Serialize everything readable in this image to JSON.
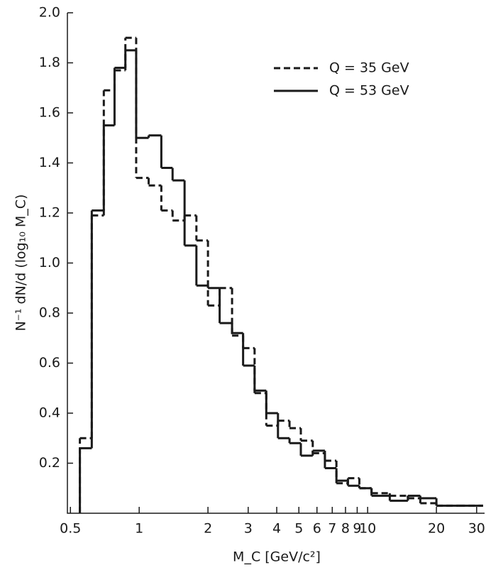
{
  "chart_data": {
    "type": "histogram",
    "xlabel": "M_C  [GeV/c²]",
    "ylabel": "N⁻¹ dN/d (log₁₀ M_C)",
    "xscale": "log",
    "xlim": [
      0.485,
      32.5
    ],
    "ylim": [
      0,
      2.0
    ],
    "xticks": [
      0.5,
      1,
      2,
      3,
      4,
      5,
      6,
      7,
      8,
      9,
      10,
      20,
      30
    ],
    "yticks": [
      0.2,
      0.4,
      0.6,
      0.8,
      {
        "value": 1.0,
        "label": "1.0"
      },
      1.2,
      1.4,
      1.6,
      1.8,
      {
        "value": 2.0,
        "label": "2.0"
      }
    ],
    "legend": "upper right",
    "bins": [
      0.55,
      0.62,
      0.7,
      0.78,
      0.87,
      0.97,
      1.1,
      1.25,
      1.4,
      1.58,
      1.78,
      2.0,
      2.25,
      2.55,
      2.85,
      3.2,
      3.6,
      4.05,
      4.55,
      5.1,
      5.75,
      6.5,
      7.3,
      8.2,
      9.2,
      10.4,
      12.5,
      15,
      17,
      20,
      25,
      32
    ],
    "series": [
      {
        "name": "Q = 35 GeV",
        "color": "#1a1a1a",
        "dash": true,
        "values": [
          0.3,
          1.19,
          1.69,
          1.77,
          1.9,
          1.34,
          1.31,
          1.21,
          1.17,
          1.19,
          1.09,
          0.83,
          0.9,
          0.71,
          0.66,
          0.48,
          0.35,
          0.37,
          0.34,
          0.29,
          0.24,
          0.21,
          0.12,
          0.14,
          0.1,
          0.08,
          0.07,
          0.06,
          0.04,
          0.03,
          0.03
        ]
      },
      {
        "name": "Q = 53 GeV",
        "color": "#1a1a1a",
        "dash": false,
        "values": [
          0.26,
          1.21,
          1.55,
          1.78,
          1.85,
          1.5,
          1.51,
          1.38,
          1.33,
          1.07,
          0.91,
          0.9,
          0.76,
          0.72,
          0.59,
          0.49,
          0.4,
          0.3,
          0.28,
          0.23,
          0.25,
          0.18,
          0.13,
          0.11,
          0.1,
          0.07,
          0.05,
          0.07,
          0.06,
          0.03,
          0.03
        ]
      }
    ]
  }
}
